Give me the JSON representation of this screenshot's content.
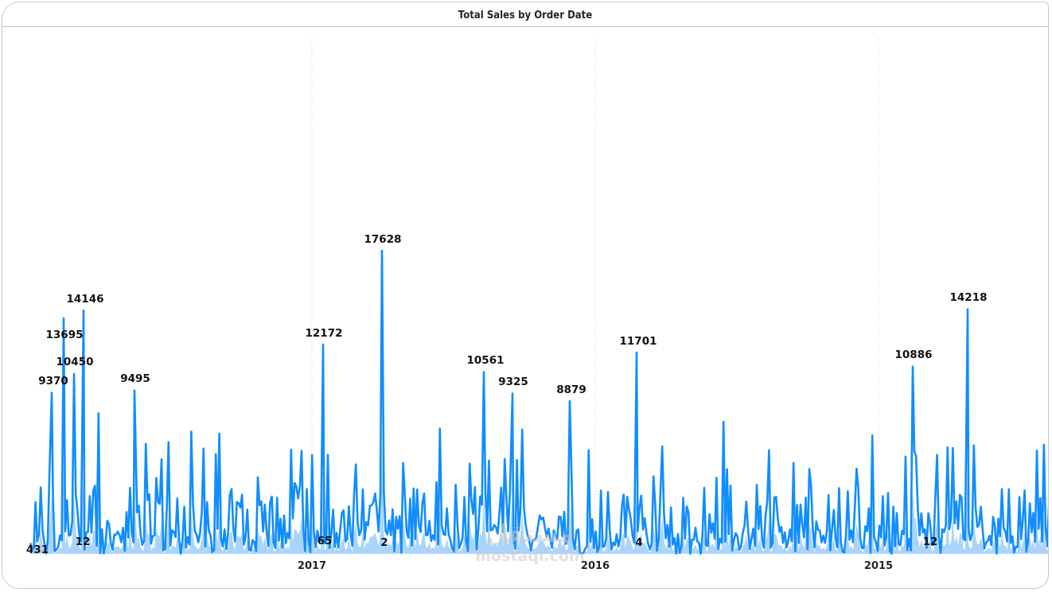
{
  "chart_data": {
    "type": "area",
    "title": "Total Sales by Order Date",
    "xlabel": "",
    "ylabel": "",
    "x_axis_direction": "descending",
    "x_ticks": [
      "2017",
      "2016",
      "2015"
    ],
    "ylim": [
      0,
      28000
    ],
    "grid": "vertical-dotted",
    "legend": "none",
    "colors": {
      "line": "#118DFF",
      "fill": "#9BCDFA"
    },
    "labeled_points": [
      {
        "value": 431
      },
      {
        "value": 9370
      },
      {
        "value": 13695
      },
      {
        "value": 10450
      },
      {
        "value": 14146
      },
      {
        "value": 12
      },
      {
        "value": 9495
      },
      {
        "value": 12172
      },
      {
        "value": 65
      },
      {
        "value": 17628
      },
      {
        "value": 2
      },
      {
        "value": 10561
      },
      {
        "value": 9325
      },
      {
        "value": 8879
      },
      {
        "value": 11701
      },
      {
        "value": 4
      },
      {
        "value": 10886
      },
      {
        "value": 12
      },
      {
        "value": 14218
      }
    ]
  },
  "watermark": {
    "logo": "مستقل",
    "text": "mostaql.com"
  }
}
